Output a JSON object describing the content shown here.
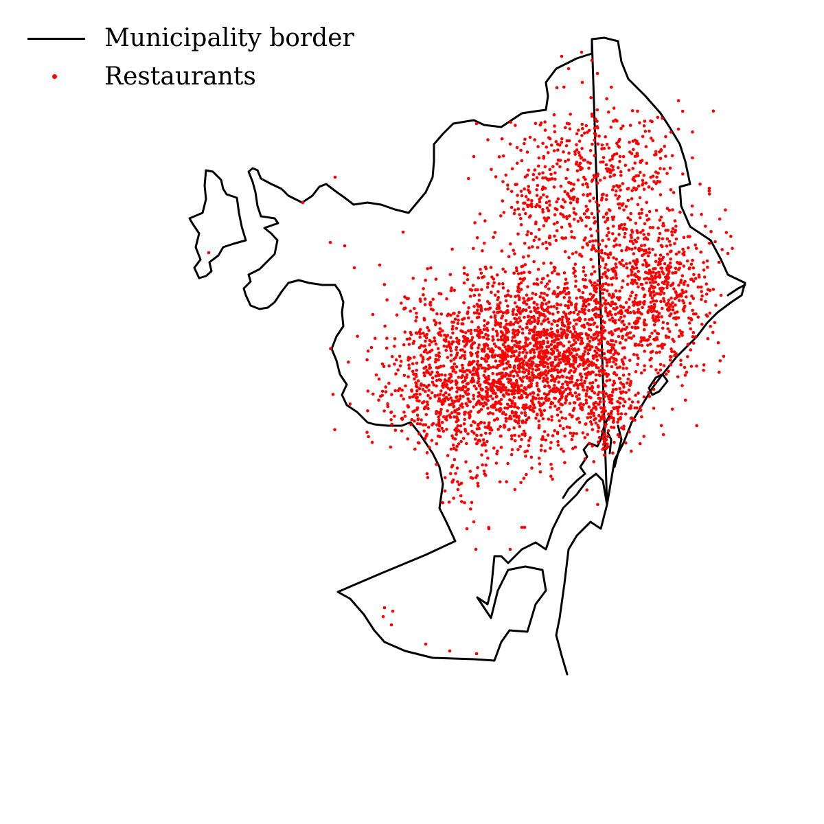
{
  "legend": {
    "border_label": "Municipality border",
    "points_label": "Restaurants"
  },
  "colors": {
    "border": "#000000",
    "points": "#ff0000",
    "background": "#ffffff"
  },
  "icons": {
    "border_swatch": "line-swatch-icon",
    "points_swatch": "dot-swatch-icon"
  }
}
